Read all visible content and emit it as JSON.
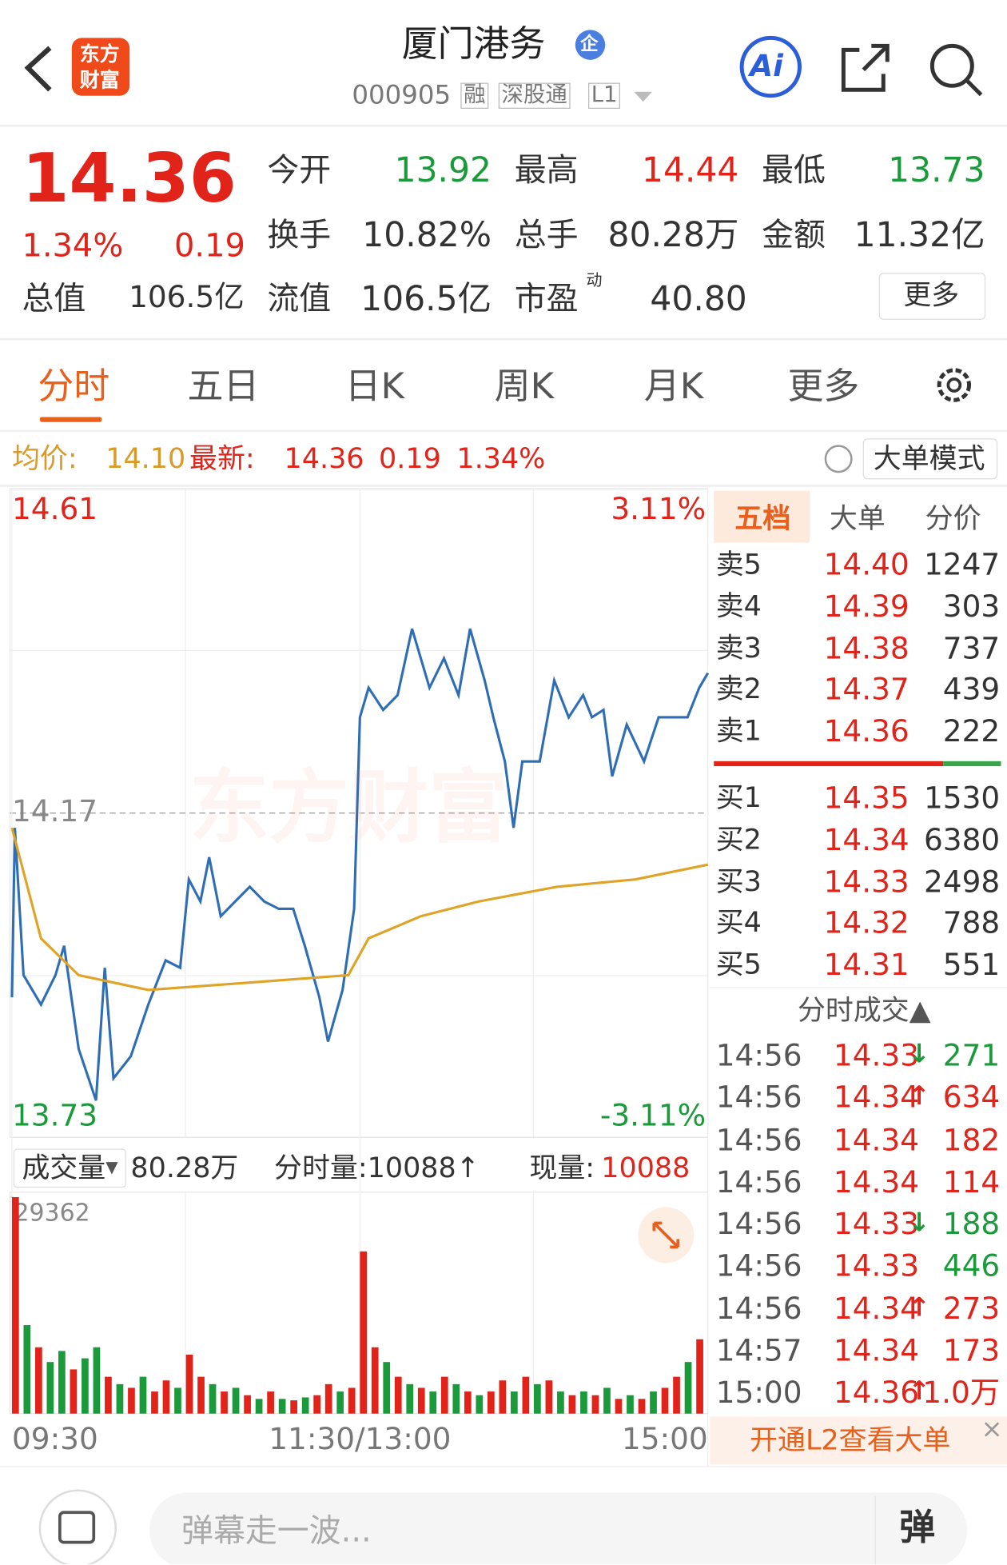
{
  "header": {
    "logo": [
      "东方",
      "财富"
    ],
    "title": "厦门港务",
    "badge": "企",
    "code": "000905",
    "tags": [
      "融",
      "深股通",
      "L1"
    ],
    "ai": "Ai"
  },
  "quote": {
    "price": "14.36",
    "change_pct": "1.34%",
    "change": "0.19",
    "fields": [
      {
        "label": "今开",
        "value": "13.92"
      },
      {
        "label": "最高",
        "value": "14.44"
      },
      {
        "label": "最低",
        "value": "13.73"
      },
      {
        "label": "换手",
        "value": "10.82%"
      },
      {
        "label": "总手",
        "value": "80.28万"
      },
      {
        "label": "金额",
        "value": "11.32亿"
      },
      {
        "label": "总值",
        "value": "106.5亿"
      },
      {
        "label": "流值",
        "value": "106.5亿"
      },
      {
        "label": "市盈",
        "sup": "动",
        "value": "40.80"
      }
    ],
    "more": "更多"
  },
  "tabs": [
    "分时",
    "五日",
    "日K",
    "周K",
    "月K",
    "更多"
  ],
  "info_bar": {
    "avg_label": "均价:",
    "avg": "14.10",
    "latest_label": "最新:",
    "latest": "14.36",
    "change": "0.19",
    "change_pct": "1.34%",
    "mode": "大单模式"
  },
  "volume_bar": {
    "label": "成交量",
    "total": "80.28万",
    "minute": "分时量:10088↑",
    "current_label": "现量:",
    "current": "10088"
  },
  "watermark": "东方财富",
  "chart_data": [
    {
      "type": "line",
      "xlim": [
        0,
        240
      ],
      "xticks": [
        {
          "value": 0,
          "label": "09:30"
        },
        {
          "value": 120,
          "label": "11:30/13:00"
        },
        {
          "value": 240,
          "label": "15:00"
        }
      ],
      "ylim": [
        13.73,
        14.61
      ],
      "yticks": [
        13.73,
        14.17,
        14.61
      ],
      "y2lim": [
        -3.11,
        3.11
      ],
      "y2ticks": [
        {
          "value": -3.11,
          "label": "-3.11%"
        },
        {
          "value": 3.11,
          "label": "3.11%"
        }
      ],
      "series": [
        {
          "color": "#2f6db5",
          "x": [
            0,
            1,
            4,
            10,
            15,
            18,
            23,
            29,
            32,
            35,
            41,
            47,
            53,
            58,
            61,
            65,
            68,
            72,
            77,
            82,
            87,
            92,
            97,
            101,
            106,
            109,
            114,
            118,
            120,
            123,
            128,
            133,
            138,
            144,
            149,
            154,
            158,
            163,
            166,
            170,
            173,
            176,
            182,
            187,
            192,
            197,
            200,
            204,
            207,
            212,
            218,
            223,
            228,
            233,
            237,
            240
          ],
          "values": [
            13.92,
            14.15,
            13.95,
            13.91,
            13.95,
            13.99,
            13.85,
            13.78,
            13.96,
            13.81,
            13.84,
            13.91,
            13.97,
            13.96,
            14.08,
            14.05,
            14.11,
            14.03,
            14.05,
            14.07,
            14.05,
            14.04,
            14.04,
            13.99,
            13.92,
            13.86,
            13.93,
            14.04,
            14.3,
            14.34,
            14.31,
            14.33,
            14.42,
            14.34,
            14.38,
            14.33,
            14.42,
            14.35,
            14.3,
            14.24,
            14.15,
            14.24,
            14.24,
            14.35,
            14.3,
            14.33,
            14.3,
            14.31,
            14.22,
            14.29,
            14.24,
            14.3,
            14.3,
            14.3,
            14.34,
            14.36
          ]
        },
        {
          "color": "#e0a326",
          "x": [
            0,
            10,
            23,
            47,
            82,
            116,
            123,
            141,
            161,
            188,
            215,
            240
          ],
          "values": [
            14.15,
            14.0,
            13.95,
            13.93,
            13.94,
            13.95,
            14.0,
            14.03,
            14.05,
            14.07,
            14.08,
            14.1
          ]
        }
      ]
    },
    {
      "type": "bar",
      "xlim": [
        0,
        240
      ],
      "ylim": [
        0,
        29362
      ],
      "yticks": [
        29362
      ],
      "x": [
        0,
        4,
        8,
        12,
        16,
        20,
        24,
        28,
        32,
        36,
        40,
        44,
        48,
        52,
        56,
        60,
        64,
        68,
        72,
        76,
        80,
        84,
        88,
        92,
        96,
        100,
        104,
        108,
        112,
        116,
        120,
        124,
        128,
        132,
        136,
        140,
        144,
        148,
        152,
        156,
        160,
        164,
        168,
        172,
        176,
        180,
        184,
        188,
        192,
        196,
        200,
        204,
        208,
        212,
        216,
        220,
        224,
        228,
        232,
        236
      ],
      "values": [
        29362,
        12000,
        9000,
        7000,
        8500,
        6000,
        7500,
        9000,
        5000,
        4000,
        3500,
        5000,
        3000,
        4500,
        3500,
        8000,
        5000,
        4000,
        3000,
        3500,
        2500,
        2000,
        3000,
        2000,
        1800,
        2200,
        2500,
        4000,
        3000,
        3500,
        22000,
        9000,
        7000,
        5000,
        4000,
        3500,
        3000,
        5000,
        4000,
        3000,
        2500,
        3000,
        4500,
        3000,
        5000,
        4000,
        4500,
        3000,
        2500,
        3000,
        2500,
        3500,
        2000,
        2500,
        2000,
        3000,
        3500,
        5000,
        7000,
        10088
      ],
      "colors": [
        "#e2231a",
        "#1a9a3a",
        "#e2231a",
        "#1a9a3a",
        "#1a9a3a",
        "#e2231a",
        "#1a9a3a",
        "#1a9a3a",
        "#e2231a",
        "#1a9a3a",
        "#e2231a",
        "#1a9a3a",
        "#e2231a",
        "#e2231a",
        "#1a9a3a",
        "#e2231a",
        "#e2231a",
        "#1a9a3a",
        "#e2231a",
        "#1a9a3a",
        "#e2231a",
        "#1a9a3a",
        "#e2231a",
        "#1a9a3a",
        "#e2231a",
        "#1a9a3a",
        "#e2231a",
        "#e2231a",
        "#1a9a3a",
        "#e2231a",
        "#e2231a",
        "#e2231a",
        "#1a9a3a",
        "#e2231a",
        "#1a9a3a",
        "#e2231a",
        "#1a9a3a",
        "#e2231a",
        "#1a9a3a",
        "#e2231a",
        "#1a9a3a",
        "#e2231a",
        "#e2231a",
        "#1a9a3a",
        "#e2231a",
        "#1a9a3a",
        "#e2231a",
        "#1a9a3a",
        "#e2231a",
        "#1a9a3a",
        "#e2231a",
        "#1a9a3a",
        "#e2231a",
        "#1a9a3a",
        "#e2231a",
        "#1a9a3a",
        "#e2231a",
        "#e2231a",
        "#1a9a3a",
        "#e2231a"
      ]
    }
  ],
  "order_book": {
    "tabs": [
      "五档",
      "大单",
      "分价"
    ],
    "sells": [
      [
        "卖5",
        "14.40",
        "1247"
      ],
      [
        "卖4",
        "14.39",
        "303"
      ],
      [
        "卖3",
        "14.38",
        "737"
      ],
      [
        "卖2",
        "14.37",
        "439"
      ],
      [
        "卖1",
        "14.36",
        "222"
      ]
    ],
    "buys": [
      [
        "买1",
        "14.35",
        "1530"
      ],
      [
        "买2",
        "14.34",
        "6380"
      ],
      [
        "买3",
        "14.33",
        "2498"
      ],
      [
        "买4",
        "14.32",
        "788"
      ],
      [
        "买5",
        "14.31",
        "551"
      ]
    ]
  },
  "trades": {
    "title": "分时成交▲",
    "rows": [
      {
        "time": "14:56",
        "price": "14.33",
        "arrow": "↓",
        "volume": "271",
        "color": "#1a9a3a"
      },
      {
        "time": "14:56",
        "price": "14.34",
        "arrow": "↑",
        "volume": "634",
        "color": "#e2231a"
      },
      {
        "time": "14:56",
        "price": "14.34",
        "arrow": "",
        "volume": "182",
        "color": "#e2231a"
      },
      {
        "time": "14:56",
        "price": "14.34",
        "arrow": "",
        "volume": "114",
        "color": "#e2231a"
      },
      {
        "time": "14:56",
        "price": "14.33",
        "arrow": "↓",
        "volume": "188",
        "color": "#1a9a3a"
      },
      {
        "time": "14:56",
        "price": "14.33",
        "arrow": "",
        "volume": "446",
        "color": "#1a9a3a"
      },
      {
        "time": "14:56",
        "price": "14.34",
        "arrow": "↑",
        "volume": "273",
        "color": "#e2231a"
      },
      {
        "time": "14:57",
        "price": "14.34",
        "arrow": "",
        "volume": "173",
        "color": "#e2231a"
      },
      {
        "time": "15:00",
        "price": "14.36",
        "arrow": "↑",
        "volume": "1.0万",
        "color": "#e2231a"
      }
    ]
  },
  "footer": {
    "l2": "开通L2查看大单",
    "close": "×",
    "placeholder": "弹幕走一波...",
    "danmu": "弹"
  }
}
